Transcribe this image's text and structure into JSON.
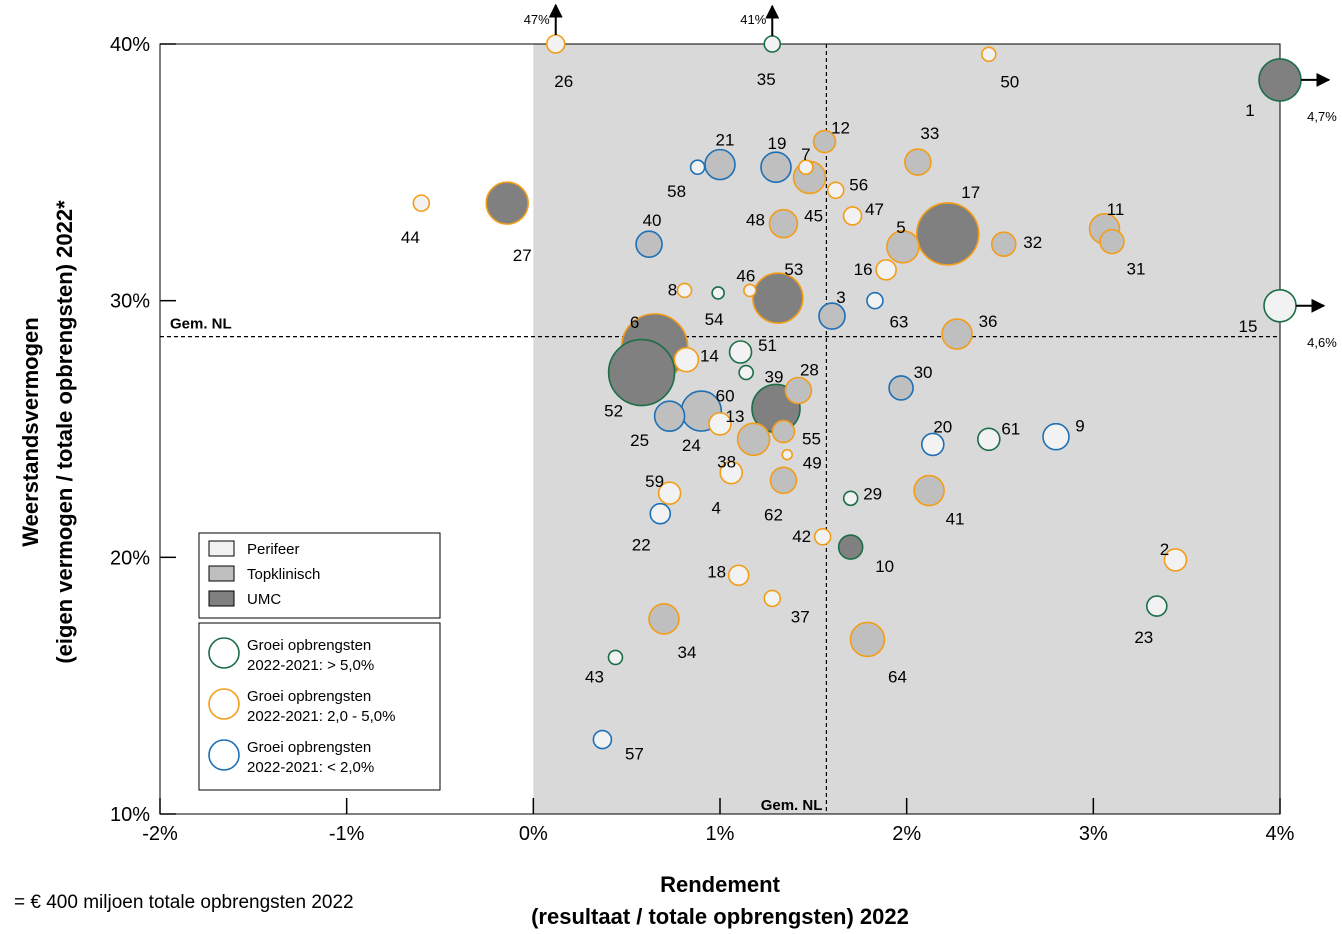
{
  "chart_data": {
    "type": "scatter",
    "xlabel": [
      "Rendement",
      "(resultaat / totale opbrengsten) 2022"
    ],
    "ylabel": [
      "Weerstandsvermogen",
      "(eigen vermogen / totale opbrengsten) 2022*"
    ],
    "xlim": [
      -2,
      4
    ],
    "ylim": [
      10,
      40
    ],
    "xticks": [
      -2,
      -1,
      0,
      1,
      2,
      3,
      4
    ],
    "yticks": [
      10,
      20,
      30,
      40
    ],
    "xtick_labels": [
      "-2%",
      "-1%",
      "0%",
      "1%",
      "2%",
      "3%",
      "4%"
    ],
    "ytick_labels": [
      "10%",
      "20%",
      "30%",
      "40%"
    ],
    "shaded_region": {
      "x_from": 0,
      "x_to": 4,
      "y_from": 10,
      "y_to": 40,
      "color": "#d9d9d9"
    },
    "avg_x": 1.57,
    "avg_y": 28.6,
    "avg_label": "Gem. NL",
    "fill_colors": {
      "Perifeer": "#f2f2f2",
      "Topklinisch": "#bfbfbf",
      "UMC": "#808080"
    },
    "outline_colors": {
      "groei_hoog": "#1b6e46",
      "groei_mid": "#f29d18",
      "groei_laag": "#1f6fb4"
    },
    "legend_type": [
      "Perifeer",
      "Topklinisch",
      "UMC"
    ],
    "legend_growth": [
      {
        "key": "groei_hoog",
        "line1": "Groei opbrengsten",
        "line2": "2022-2021: > 5,0%"
      },
      {
        "key": "groei_mid",
        "line1": "Groei opbrengsten",
        "line2": "2022-2021: 2,0 - 5,0%"
      },
      {
        "key": "groei_laag",
        "line1": "Groei opbrengsten",
        "line2": "2022-2021: < 2,0%"
      }
    ],
    "size_note": "= € 400 miljoen totale opbrengsten 2022",
    "points": [
      {
        "id": "1",
        "x": 4.0,
        "y": 38.6,
        "r": 21,
        "type": "UMC",
        "growth": "groei_hoog",
        "lx": -30,
        "ly": 30,
        "off": "4,7%",
        "dir": "right"
      },
      {
        "id": "2",
        "x": 3.44,
        "y": 19.9,
        "r": 11,
        "type": "Perifeer",
        "growth": "groei_mid",
        "lx": -11,
        "ly": -11
      },
      {
        "id": "3",
        "x": 1.6,
        "y": 29.4,
        "r": 13,
        "type": "Topklinisch",
        "growth": "groei_laag",
        "lx": 9,
        "ly": -19
      },
      {
        "id": "4",
        "x": 1.06,
        "y": 23.3,
        "r": 11,
        "type": "Perifeer",
        "growth": "groei_mid",
        "lx": -15,
        "ly": 35
      },
      {
        "id": "5",
        "x": 1.98,
        "y": 32.1,
        "r": 16,
        "type": "Topklinisch",
        "growth": "groei_mid",
        "lx": -2,
        "ly": -20
      },
      {
        "id": "6",
        "x": 0.65,
        "y": 28.2,
        "r": 33,
        "type": "UMC",
        "growth": "groei_mid",
        "lx": -20,
        "ly": -25
      },
      {
        "id": "7",
        "x": 1.46,
        "y": 35.2,
        "r": 7,
        "type": "Perifeer",
        "growth": "groei_mid",
        "lx": 0,
        "ly": -13
      },
      {
        "id": "8",
        "x": 0.81,
        "y": 30.4,
        "r": 7,
        "type": "Perifeer",
        "growth": "groei_mid",
        "lx": -12,
        "ly": -1
      },
      {
        "id": "9",
        "x": 2.8,
        "y": 24.7,
        "r": 13,
        "type": "Perifeer",
        "growth": "groei_laag",
        "lx": 24,
        "ly": -11
      },
      {
        "id": "10",
        "x": 1.7,
        "y": 20.4,
        "r": 12,
        "type": "UMC",
        "growth": "groei_hoog",
        "lx": 34,
        "ly": 19
      },
      {
        "id": "11",
        "x": 3.06,
        "y": 32.8,
        "r": 15,
        "type": "Topklinisch",
        "growth": "groei_mid",
        "lx": 11,
        "ly": -20
      },
      {
        "id": "12",
        "x": 1.56,
        "y": 36.2,
        "r": 11,
        "type": "Topklinisch",
        "growth": "groei_mid",
        "lx": 16,
        "ly": -14
      },
      {
        "id": "13",
        "x": 1.0,
        "y": 25.2,
        "r": 11,
        "type": "Perifeer",
        "growth": "groei_mid",
        "lx": 15,
        "ly": -8
      },
      {
        "id": "14",
        "x": 0.82,
        "y": 27.7,
        "r": 12,
        "type": "Perifeer",
        "growth": "groei_mid",
        "lx": 23,
        "ly": -4
      },
      {
        "id": "15",
        "x": 4.0,
        "y": 29.8,
        "r": 16,
        "type": "Perifeer",
        "growth": "groei_hoog",
        "lx": -32,
        "ly": 20,
        "off": "4,6%",
        "dir": "right"
      },
      {
        "id": "16",
        "x": 1.89,
        "y": 31.2,
        "r": 10,
        "type": "Perifeer",
        "growth": "groei_mid",
        "lx": -23,
        "ly": -1
      },
      {
        "id": "17",
        "x": 2.22,
        "y": 32.6,
        "r": 31,
        "type": "UMC",
        "growth": "groei_mid",
        "lx": 23,
        "ly": -42
      },
      {
        "id": "18",
        "x": 1.1,
        "y": 19.3,
        "r": 10,
        "type": "Perifeer",
        "growth": "groei_mid",
        "lx": -22,
        "ly": -4
      },
      {
        "id": "19",
        "x": 1.3,
        "y": 35.2,
        "r": 15,
        "type": "Topklinisch",
        "growth": "groei_laag",
        "lx": 1,
        "ly": -24
      },
      {
        "id": "20",
        "x": 2.14,
        "y": 24.4,
        "r": 11,
        "type": "Perifeer",
        "growth": "groei_laag",
        "lx": 10,
        "ly": -18
      },
      {
        "id": "21",
        "x": 1.0,
        "y": 35.3,
        "r": 15,
        "type": "Topklinisch",
        "growth": "groei_laag",
        "lx": 5,
        "ly": -25
      },
      {
        "id": "22",
        "x": 0.68,
        "y": 21.7,
        "r": 10,
        "type": "Perifeer",
        "growth": "groei_laag",
        "lx": -19,
        "ly": 31
      },
      {
        "id": "23",
        "x": 3.34,
        "y": 18.1,
        "r": 10,
        "type": "Perifeer",
        "growth": "groei_hoog",
        "lx": -13,
        "ly": 31
      },
      {
        "id": "24",
        "x": 0.9,
        "y": 25.7,
        "r": 20,
        "type": "Topklinisch",
        "growth": "groei_laag",
        "lx": -10,
        "ly": 34
      },
      {
        "id": "25",
        "x": 0.73,
        "y": 25.5,
        "r": 15,
        "type": "Topklinisch",
        "growth": "groei_laag",
        "lx": -30,
        "ly": 24
      },
      {
        "id": "26",
        "x": 0.12,
        "y": 40.0,
        "r": 9,
        "type": "Perifeer",
        "growth": "groei_mid",
        "lx": 8,
        "ly": 37,
        "off": "47%",
        "dir": "up"
      },
      {
        "id": "27",
        "x": -0.14,
        "y": 33.8,
        "r": 21,
        "type": "UMC",
        "growth": "groei_mid",
        "lx": 15,
        "ly": 52
      },
      {
        "id": "28",
        "x": 1.42,
        "y": 26.5,
        "r": 13,
        "type": "Topklinisch",
        "growth": "groei_mid",
        "lx": 11,
        "ly": -21
      },
      {
        "id": "29",
        "x": 1.7,
        "y": 22.3,
        "r": 7,
        "type": "Perifeer",
        "growth": "groei_hoog",
        "lx": 22,
        "ly": -5
      },
      {
        "id": "30",
        "x": 1.97,
        "y": 26.6,
        "r": 12,
        "type": "Topklinisch",
        "growth": "groei_laag",
        "lx": 22,
        "ly": -16
      },
      {
        "id": "31",
        "x": 3.1,
        "y": 32.3,
        "r": 12,
        "type": "Topklinisch",
        "growth": "groei_mid",
        "lx": 24,
        "ly": 27
      },
      {
        "id": "32",
        "x": 2.52,
        "y": 32.2,
        "r": 12,
        "type": "Topklinisch",
        "growth": "groei_mid",
        "lx": 29,
        "ly": -2
      },
      {
        "id": "33",
        "x": 2.06,
        "y": 35.4,
        "r": 13,
        "type": "Topklinisch",
        "growth": "groei_mid",
        "lx": 12,
        "ly": -29
      },
      {
        "id": "34",
        "x": 0.7,
        "y": 17.6,
        "r": 15,
        "type": "Topklinisch",
        "growth": "groei_mid",
        "lx": 23,
        "ly": 33
      },
      {
        "id": "35",
        "x": 1.28,
        "y": 40.0,
        "r": 8,
        "type": "Perifeer",
        "growth": "groei_hoog",
        "lx": -6,
        "ly": 35,
        "off": "41%",
        "dir": "up"
      },
      {
        "id": "36",
        "x": 2.27,
        "y": 28.7,
        "r": 15,
        "type": "Topklinisch",
        "growth": "groei_mid",
        "lx": 31,
        "ly": -13
      },
      {
        "id": "37",
        "x": 1.28,
        "y": 18.4,
        "r": 8,
        "type": "Perifeer",
        "growth": "groei_mid",
        "lx": 28,
        "ly": 18
      },
      {
        "id": "38",
        "x": 1.18,
        "y": 24.6,
        "r": 16,
        "type": "Topklinisch",
        "growth": "groei_mid",
        "lx": -27,
        "ly": 22
      },
      {
        "id": "39",
        "x": 1.3,
        "y": 25.8,
        "r": 24,
        "type": "UMC",
        "growth": "groei_hoog",
        "lx": -2,
        "ly": -32
      },
      {
        "id": "40",
        "x": 0.62,
        "y": 32.2,
        "r": 13,
        "type": "Topklinisch",
        "growth": "groei_laag",
        "lx": 3,
        "ly": -24
      },
      {
        "id": "41",
        "x": 2.12,
        "y": 22.6,
        "r": 15,
        "type": "Topklinisch",
        "growth": "groei_mid",
        "lx": 26,
        "ly": 28
      },
      {
        "id": "42",
        "x": 1.55,
        "y": 20.8,
        "r": 8,
        "type": "Perifeer",
        "growth": "groei_mid",
        "lx": -21,
        "ly": -1
      },
      {
        "id": "43",
        "x": 0.44,
        "y": 16.1,
        "r": 7,
        "type": "Perifeer",
        "growth": "groei_hoog",
        "lx": -21,
        "ly": 19
      },
      {
        "id": "44",
        "x": -0.6,
        "y": 33.8,
        "r": 8,
        "type": "Perifeer",
        "growth": "groei_mid",
        "lx": -11,
        "ly": 34
      },
      {
        "id": "45",
        "x": 1.48,
        "y": 34.8,
        "r": 16,
        "type": "Topklinisch",
        "growth": "groei_mid",
        "lx": 4,
        "ly": 38
      },
      {
        "id": "46",
        "x": 1.16,
        "y": 30.4,
        "r": 6,
        "type": "Perifeer",
        "growth": "groei_mid",
        "lx": -4,
        "ly": -15
      },
      {
        "id": "47",
        "x": 1.71,
        "y": 33.3,
        "r": 9,
        "type": "Perifeer",
        "growth": "groei_mid",
        "lx": 22,
        "ly": -7
      },
      {
        "id": "48",
        "x": 1.34,
        "y": 33.0,
        "r": 14,
        "type": "Topklinisch",
        "growth": "groei_mid",
        "lx": -28,
        "ly": -4
      },
      {
        "id": "49",
        "x": 1.36,
        "y": 24.0,
        "r": 5,
        "type": "Perifeer",
        "growth": "groei_mid",
        "lx": 25,
        "ly": 8
      },
      {
        "id": "50",
        "x": 2.44,
        "y": 39.6,
        "r": 7,
        "type": "Perifeer",
        "growth": "groei_mid",
        "lx": 21,
        "ly": 27
      },
      {
        "id": "51",
        "x": 1.11,
        "y": 28.0,
        "r": 11,
        "type": "Perifeer",
        "growth": "groei_hoog",
        "lx": 27,
        "ly": -7
      },
      {
        "id": "52",
        "x": 0.58,
        "y": 27.2,
        "r": 33,
        "type": "UMC",
        "growth": "groei_hoog",
        "lx": -28,
        "ly": 38
      },
      {
        "id": "53",
        "x": 1.31,
        "y": 30.1,
        "r": 25,
        "type": "UMC",
        "growth": "groei_mid",
        "lx": 16,
        "ly": -29
      },
      {
        "id": "54",
        "x": 0.99,
        "y": 30.3,
        "r": 6,
        "type": "Perifeer",
        "growth": "groei_hoog",
        "lx": -4,
        "ly": 26
      },
      {
        "id": "55",
        "x": 1.34,
        "y": 24.9,
        "r": 11,
        "type": "Topklinisch",
        "growth": "groei_mid",
        "lx": 28,
        "ly": 7
      },
      {
        "id": "56",
        "x": 1.62,
        "y": 34.3,
        "r": 8,
        "type": "Perifeer",
        "growth": "groei_mid",
        "lx": 23,
        "ly": -6
      },
      {
        "id": "57",
        "x": 0.37,
        "y": 12.9,
        "r": 9,
        "type": "Perifeer",
        "growth": "groei_laag",
        "lx": 32,
        "ly": 14
      },
      {
        "id": "58",
        "x": 0.88,
        "y": 35.2,
        "r": 7,
        "type": "Perifeer",
        "growth": "groei_laag",
        "lx": -21,
        "ly": 24
      },
      {
        "id": "59",
        "x": 0.73,
        "y": 22.5,
        "r": 11,
        "type": "Perifeer",
        "growth": "groei_mid",
        "lx": -15,
        "ly": -12
      },
      {
        "id": "60",
        "x": 1.14,
        "y": 27.2,
        "r": 7,
        "type": "Perifeer",
        "growth": "groei_hoog",
        "lx": -21,
        "ly": 23
      },
      {
        "id": "61",
        "x": 2.44,
        "y": 24.6,
        "r": 11,
        "type": "Perifeer",
        "growth": "groei_hoog",
        "lx": 22,
        "ly": -11
      },
      {
        "id": "62",
        "x": 1.34,
        "y": 23.0,
        "r": 13,
        "type": "Topklinisch",
        "growth": "groei_mid",
        "lx": -10,
        "ly": 34
      },
      {
        "id": "63",
        "x": 1.83,
        "y": 30.0,
        "r": 8,
        "type": "Perifeer",
        "growth": "groei_laag",
        "lx": 24,
        "ly": 21
      },
      {
        "id": "64",
        "x": 1.79,
        "y": 16.8,
        "r": 17,
        "type": "Topklinisch",
        "growth": "groei_mid",
        "lx": 30,
        "ly": 37
      }
    ]
  }
}
